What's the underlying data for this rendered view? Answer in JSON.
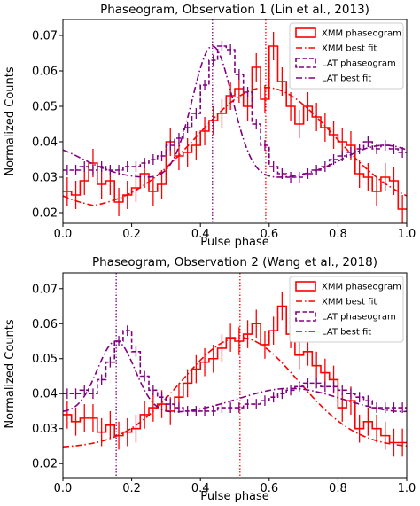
{
  "colors": {
    "xmm": "#ff0000",
    "lat": "#800080"
  },
  "chart_data": [
    {
      "type": "line",
      "title": "Phaseogram, Observation 1 (Lin et al., 2013)",
      "xlabel": "Pulse phase",
      "ylabel": "Normalized Counts",
      "xlim": [
        0,
        1
      ],
      "ylim": [
        0.017,
        0.0745
      ],
      "xticks": [
        0.0,
        0.2,
        0.4,
        0.6,
        0.8,
        1.0
      ],
      "xtick_labels": [
        "0.0",
        "0.2",
        "0.4",
        "0.6",
        "0.8",
        "1.0"
      ],
      "yticks": [
        0.02,
        0.03,
        0.04,
        0.05,
        0.06,
        0.07
      ],
      "ytick_labels": [
        "0.02",
        "0.03",
        "0.04",
        "0.05",
        "0.06",
        "0.07"
      ],
      "legend_position": "top-right",
      "legend": [
        "XMM phaseogram",
        "XMM best fit",
        "LAT phaseogram",
        "LAT best fit"
      ],
      "vlines": [
        {
          "x": 0.435,
          "series": "lat"
        },
        {
          "x": 0.59,
          "series": "xmm"
        }
      ],
      "series": [
        {
          "name": "XMM phaseogram",
          "key": "xmm",
          "style": "step-solid",
          "bin_width": 0.025,
          "values": [
            0.026,
            0.025,
            0.029,
            0.034,
            0.028,
            0.029,
            0.023,
            0.025,
            0.027,
            0.031,
            0.026,
            0.028,
            0.04,
            0.036,
            0.037,
            0.039,
            0.043,
            0.046,
            0.048,
            0.053,
            0.055,
            0.05,
            0.061,
            0.052,
            0.067,
            0.057,
            0.05,
            0.045,
            0.05,
            0.047,
            0.044,
            0.042,
            0.04,
            0.039,
            0.031,
            0.03,
            0.026,
            0.03,
            0.029,
            0.021
          ],
          "errors": [
            0.004,
            0.004,
            0.004,
            0.004,
            0.004,
            0.004,
            0.004,
            0.004,
            0.004,
            0.004,
            0.004,
            0.004,
            0.004,
            0.004,
            0.004,
            0.004,
            0.004,
            0.004,
            0.004,
            0.004,
            0.004,
            0.004,
            0.004,
            0.004,
            0.004,
            0.004,
            0.004,
            0.004,
            0.004,
            0.004,
            0.004,
            0.004,
            0.004,
            0.004,
            0.004,
            0.004,
            0.004,
            0.004,
            0.004,
            0.004
          ]
        },
        {
          "name": "XMM best fit",
          "key": "xmm",
          "style": "dashdot",
          "model": {
            "baseline": 0.0205,
            "amplitude": 0.0348,
            "center": 0.59,
            "sigma": 0.2,
            "periodic": true
          }
        },
        {
          "name": "LAT phaseogram",
          "key": "lat",
          "style": "step-dashed",
          "bin_width": 0.025,
          "values": [
            0.032,
            0.032,
            0.033,
            0.032,
            0.033,
            0.032,
            0.032,
            0.033,
            0.033,
            0.034,
            0.035,
            0.036,
            0.039,
            0.041,
            0.044,
            0.048,
            0.056,
            0.063,
            0.067,
            0.066,
            0.059,
            0.054,
            0.045,
            0.039,
            0.033,
            0.031,
            0.03,
            0.03,
            0.031,
            0.032,
            0.033,
            0.035,
            0.036,
            0.037,
            0.038,
            0.04,
            0.038,
            0.039,
            0.038,
            0.037
          ],
          "errors": [
            0.0015,
            0.0015,
            0.0015,
            0.0015,
            0.0015,
            0.0015,
            0.0015,
            0.0015,
            0.0015,
            0.0015,
            0.0015,
            0.0015,
            0.0015,
            0.0015,
            0.0015,
            0.0015,
            0.0015,
            0.0015,
            0.0015,
            0.0015,
            0.0015,
            0.0015,
            0.0015,
            0.0015,
            0.0015,
            0.0015,
            0.0015,
            0.0015,
            0.0015,
            0.0015,
            0.0015,
            0.0015,
            0.0015,
            0.0015,
            0.0015,
            0.0015,
            0.0015,
            0.0015,
            0.0015,
            0.0015
          ]
        },
        {
          "name": "LAT best fit",
          "key": "lat",
          "style": "dashdot",
          "model": {
            "baseline": 0.0295,
            "components": [
              {
                "amplitude": 0.0375,
                "center": 0.435,
                "sigma": 0.058
              },
              {
                "amplitude": 0.0095,
                "center": 0.935,
                "sigma": 0.12
              }
            ],
            "periodic": true
          }
        }
      ]
    },
    {
      "type": "line",
      "title": "Phaseogram, Observation 2 (Wang et al., 2018)",
      "xlabel": "Pulse phase",
      "ylabel": "Normalized Counts",
      "xlim": [
        0,
        1
      ],
      "ylim": [
        0.016,
        0.0745
      ],
      "xticks": [
        0.0,
        0.2,
        0.4,
        0.6,
        0.8,
        1.0
      ],
      "xtick_labels": [
        "0.0",
        "0.2",
        "0.4",
        "0.6",
        "0.8",
        "1.0"
      ],
      "yticks": [
        0.02,
        0.03,
        0.04,
        0.05,
        0.06,
        0.07
      ],
      "ytick_labels": [
        "0.02",
        "0.03",
        "0.04",
        "0.05",
        "0.06",
        "0.07"
      ],
      "legend_position": "top-right",
      "legend": [
        "XMM phaseogram",
        "XMM best fit",
        "LAT phaseogram",
        "LAT best fit"
      ],
      "vlines": [
        {
          "x": 0.155,
          "series": "lat"
        },
        {
          "x": 0.515,
          "series": "xmm"
        }
      ],
      "series": [
        {
          "name": "XMM phaseogram",
          "key": "xmm",
          "style": "step-solid",
          "bin_width": 0.025,
          "values": [
            0.034,
            0.032,
            0.033,
            0.033,
            0.029,
            0.031,
            0.028,
            0.029,
            0.03,
            0.034,
            0.036,
            0.037,
            0.035,
            0.039,
            0.043,
            0.047,
            0.049,
            0.05,
            0.053,
            0.056,
            0.055,
            0.057,
            0.06,
            0.054,
            0.058,
            0.065,
            0.057,
            0.051,
            0.052,
            0.048,
            0.046,
            0.044,
            0.036,
            0.038,
            0.03,
            0.032,
            0.03,
            0.028,
            0.026,
            0.026
          ],
          "errors": [
            0.004,
            0.004,
            0.004,
            0.004,
            0.004,
            0.004,
            0.004,
            0.004,
            0.004,
            0.004,
            0.004,
            0.004,
            0.004,
            0.004,
            0.004,
            0.004,
            0.004,
            0.004,
            0.004,
            0.004,
            0.004,
            0.004,
            0.004,
            0.004,
            0.004,
            0.004,
            0.004,
            0.004,
            0.004,
            0.004,
            0.004,
            0.004,
            0.004,
            0.004,
            0.004,
            0.004,
            0.004,
            0.004,
            0.004,
            0.004
          ]
        },
        {
          "name": "XMM best fit",
          "key": "xmm",
          "style": "dashdot",
          "model": {
            "baseline": 0.0245,
            "amplitude": 0.0315,
            "center": 0.515,
            "sigma": 0.17,
            "periodic": false
          }
        },
        {
          "name": "LAT phaseogram",
          "key": "lat",
          "style": "step-dashed",
          "bin_width": 0.025,
          "values": [
            0.04,
            0.04,
            0.041,
            0.04,
            0.044,
            0.049,
            0.055,
            0.058,
            0.052,
            0.045,
            0.041,
            0.039,
            0.037,
            0.036,
            0.035,
            0.035,
            0.035,
            0.035,
            0.036,
            0.036,
            0.036,
            0.037,
            0.037,
            0.038,
            0.039,
            0.04,
            0.041,
            0.042,
            0.043,
            0.043,
            0.042,
            0.042,
            0.041,
            0.04,
            0.039,
            0.038,
            0.036,
            0.036,
            0.036,
            0.036
          ],
          "errors": [
            0.0015,
            0.0015,
            0.0015,
            0.0015,
            0.0015,
            0.0015,
            0.0015,
            0.0015,
            0.0015,
            0.0015,
            0.0015,
            0.0015,
            0.0015,
            0.0015,
            0.0015,
            0.0015,
            0.0015,
            0.0015,
            0.0015,
            0.0015,
            0.0015,
            0.0015,
            0.0015,
            0.0015,
            0.0015,
            0.0015,
            0.0015,
            0.0015,
            0.0015,
            0.0015,
            0.0015,
            0.0015,
            0.0015,
            0.0015,
            0.0015,
            0.0015,
            0.0015,
            0.0015,
            0.0015,
            0.0015
          ]
        },
        {
          "name": "LAT best fit",
          "key": "lat",
          "style": "dashdot",
          "model": {
            "baseline": 0.034,
            "components": [
              {
                "amplitude": 0.021,
                "center": 0.155,
                "sigma": 0.055
              },
              {
                "amplitude": 0.0075,
                "center": 0.66,
                "sigma": 0.15
              }
            ],
            "periodic": true
          }
        }
      ]
    }
  ]
}
